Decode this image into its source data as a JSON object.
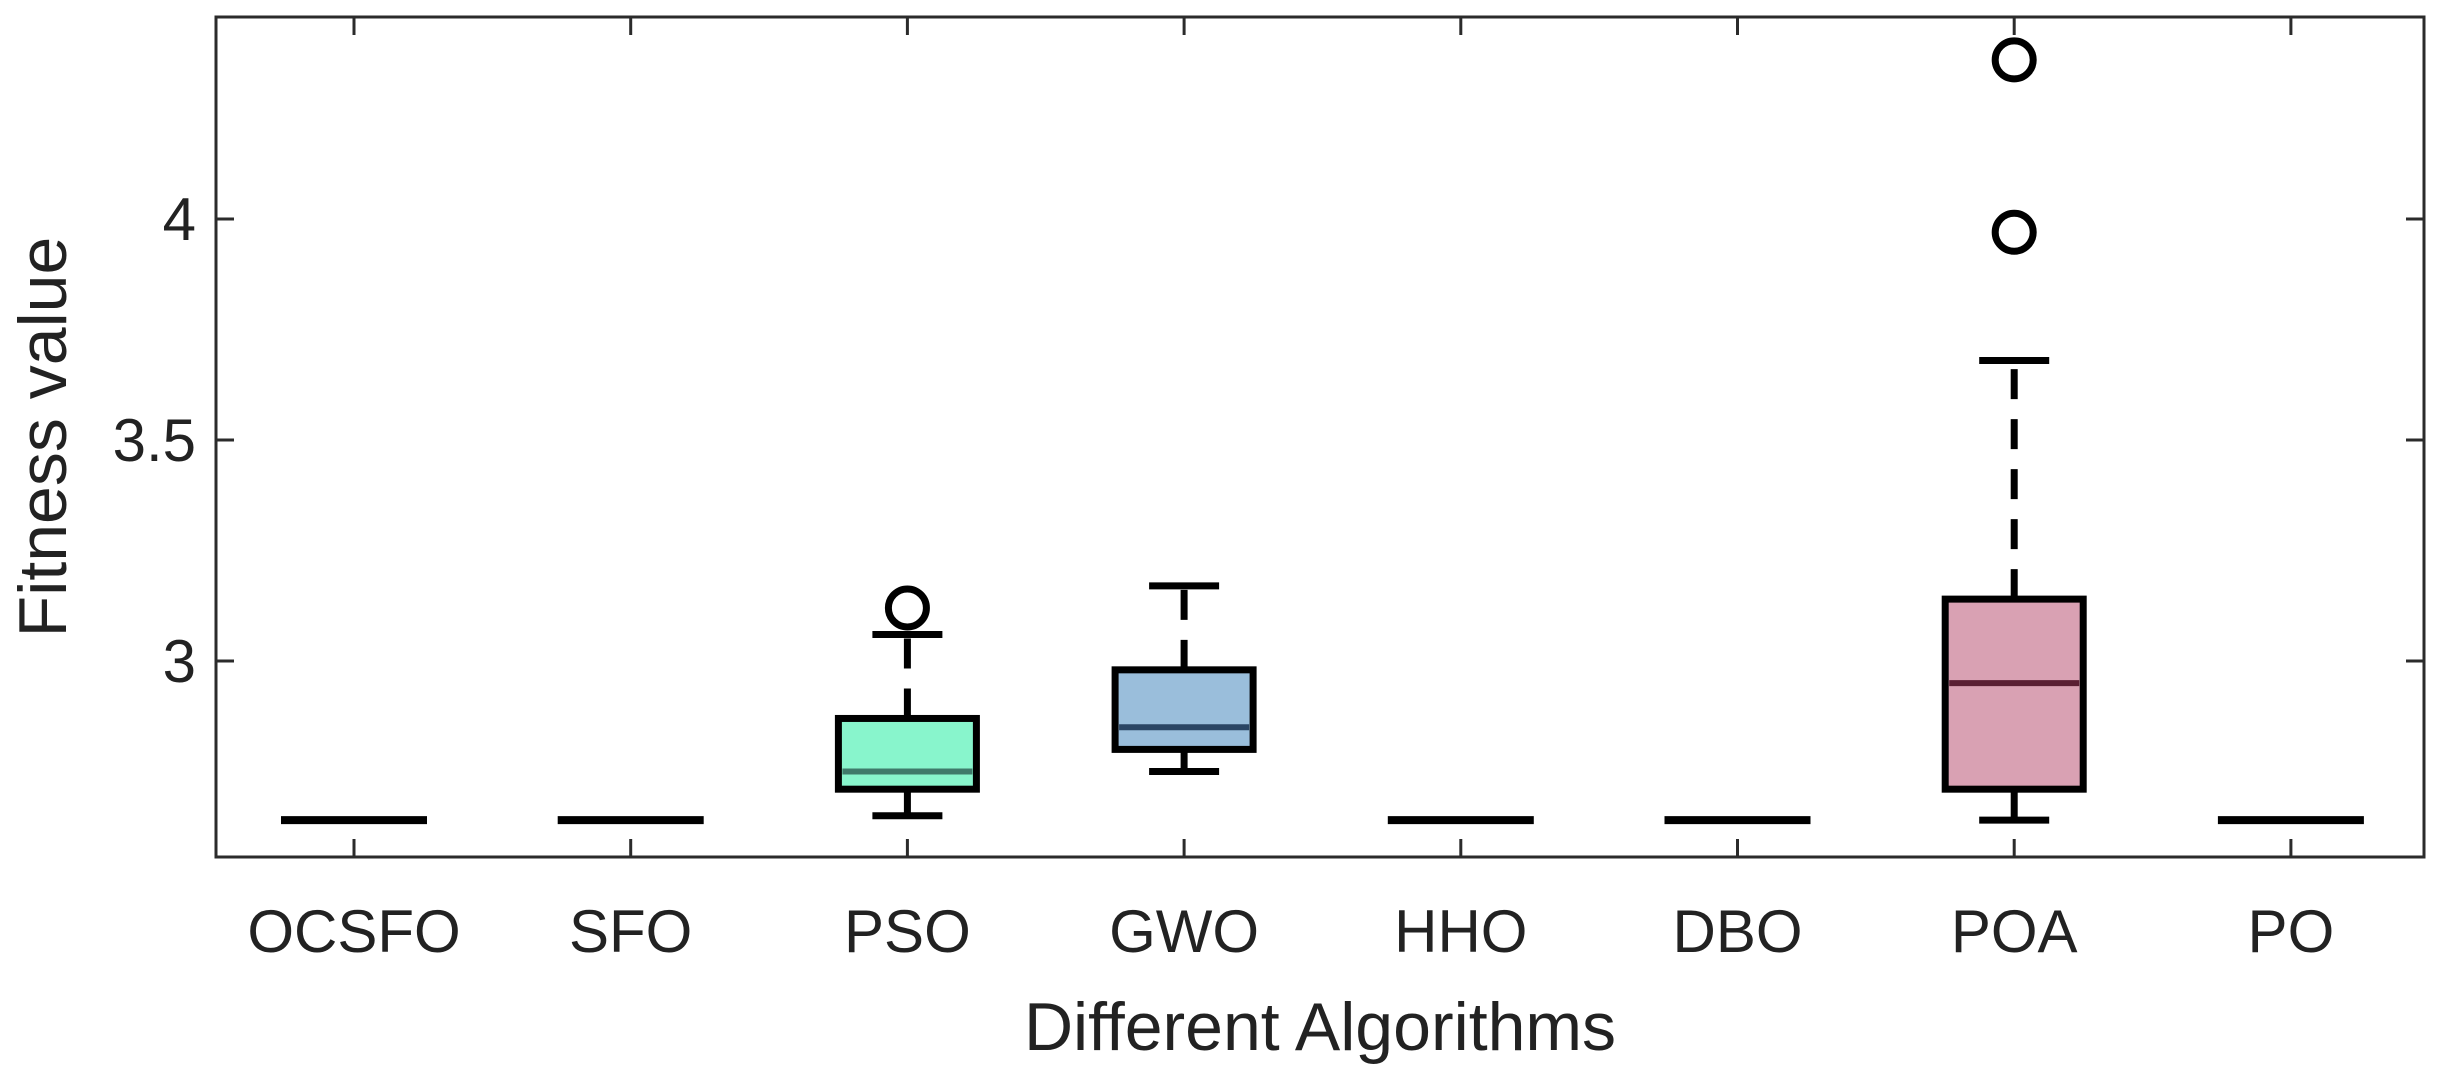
{
  "chart_data": {
    "type": "boxplot",
    "title": "",
    "xlabel": "Different Algorithms",
    "ylabel": "Fitness value",
    "ylim": [
      2.56,
      4.45
    ],
    "yticks": [
      3,
      3.5,
      4
    ],
    "ytick_labels": [
      "3",
      "3.5",
      "4"
    ],
    "grid": false,
    "categories": [
      "OCSFO",
      "SFO",
      "PSO",
      "GWO",
      "HHO",
      "DBO",
      "POA",
      "PO"
    ],
    "boxes": [
      {
        "name": "OCSFO",
        "whisker_low": 2.64,
        "q1": 2.64,
        "median": 2.64,
        "q3": 2.64,
        "whisker_high": 2.64,
        "outliers": [],
        "fill": "#ffffff",
        "median_color": "#000000"
      },
      {
        "name": "SFO",
        "whisker_low": 2.64,
        "q1": 2.64,
        "median": 2.64,
        "q3": 2.64,
        "whisker_high": 2.64,
        "outliers": [],
        "fill": "#ffffff",
        "median_color": "#000000"
      },
      {
        "name": "PSO",
        "whisker_low": 2.65,
        "q1": 2.71,
        "median": 2.75,
        "q3": 2.87,
        "whisker_high": 3.06,
        "outliers": [
          3.12
        ],
        "fill": "#88F5CC",
        "median_color": "#3f7a6a"
      },
      {
        "name": "GWO",
        "whisker_low": 2.75,
        "q1": 2.8,
        "median": 2.85,
        "q3": 2.98,
        "whisker_high": 3.17,
        "outliers": [],
        "fill": "#9ABEDB",
        "median_color": "#2a4564"
      },
      {
        "name": "HHO",
        "whisker_low": 2.64,
        "q1": 2.64,
        "median": 2.64,
        "q3": 2.64,
        "whisker_high": 2.64,
        "outliers": [],
        "fill": "#ffffff",
        "median_color": "#000000"
      },
      {
        "name": "DBO",
        "whisker_low": 2.64,
        "q1": 2.64,
        "median": 2.64,
        "q3": 2.64,
        "whisker_high": 2.64,
        "outliers": [],
        "fill": "#ffffff",
        "median_color": "#000000"
      },
      {
        "name": "POA",
        "whisker_low": 2.64,
        "q1": 2.71,
        "median": 2.95,
        "q3": 3.14,
        "whisker_high": 3.68,
        "outliers": [
          3.97,
          4.36
        ],
        "fill": "#D9A1B3",
        "median_color": "#5a1f33"
      },
      {
        "name": "PO",
        "whisker_low": 2.64,
        "q1": 2.64,
        "median": 2.64,
        "q3": 2.64,
        "whisker_high": 2.64,
        "outliers": [],
        "fill": "#ffffff",
        "median_color": "#000000"
      }
    ]
  }
}
